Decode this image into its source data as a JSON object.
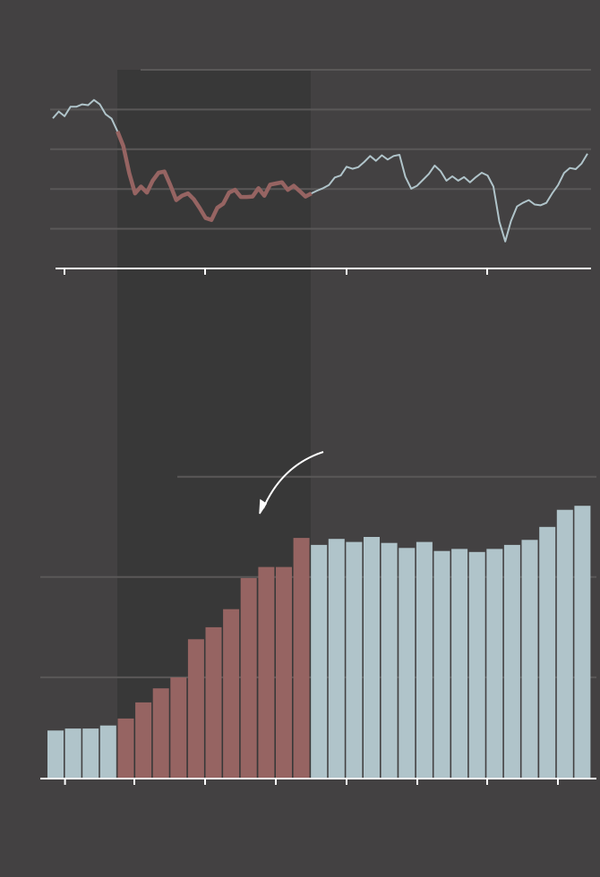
{
  "colors": {
    "background": "#434142",
    "highlight_band": "#383838",
    "normal": "#b0c4ca",
    "highlight": "#966462",
    "grid": "#5a5858",
    "axis": "#ffffff"
  },
  "chart_data": [
    {
      "type": "line",
      "title": "",
      "xlabel": "",
      "ylabel": "",
      "ylim": [
        0,
        50
      ],
      "yticks": [
        10,
        20,
        30,
        40,
        50
      ],
      "grid": true,
      "x_tick_count": 4,
      "highlight_range": [
        11,
        44
      ],
      "values": [
        37.8,
        39.5,
        38.3,
        40.7,
        40.7,
        41.3,
        41.1,
        42.4,
        41.3,
        38.8,
        37.7,
        34.5,
        30.8,
        24.0,
        18.9,
        20.6,
        19.1,
        22.1,
        24.1,
        24.4,
        21.0,
        17.2,
        18.3,
        18.9,
        17.4,
        15.2,
        12.7,
        12.2,
        15.3,
        16.3,
        19.1,
        19.8,
        18.0,
        18.0,
        18.1,
        20.2,
        18.3,
        21.1,
        21.4,
        21.7,
        19.8,
        20.8,
        19.5,
        18.1,
        18.9,
        19.6,
        20.2,
        21.0,
        22.9,
        23.4,
        25.6,
        25.1,
        25.5,
        26.8,
        28.3,
        27.1,
        28.5,
        27.4,
        28.3,
        28.6,
        23.1,
        20.1,
        20.8,
        22.3,
        23.8,
        25.9,
        24.5,
        22.1,
        23.2,
        22.1,
        23.0,
        21.7,
        23.0,
        24.1,
        23.4,
        20.6,
        11.8,
        6.8,
        12.0,
        15.6,
        16.5,
        17.2,
        16.1,
        15.9,
        16.5,
        18.9,
        21.0,
        24.0,
        25.3,
        25.0,
        26.4,
        28.9
      ]
    },
    {
      "type": "bar",
      "title": "",
      "xlabel": "",
      "ylabel": "",
      "ylim": [
        0,
        3
      ],
      "yticks": [
        1,
        2,
        3
      ],
      "grid": true,
      "x_tick_count": 8,
      "highlight_range": [
        4,
        14
      ],
      "values": [
        0.47,
        0.49,
        0.49,
        0.52,
        0.59,
        0.75,
        0.89,
        1.0,
        1.38,
        1.5,
        1.68,
        1.99,
        2.1,
        2.1,
        2.39,
        2.32,
        2.38,
        2.35,
        2.4,
        2.34,
        2.29,
        2.35,
        2.26,
        2.28,
        2.25,
        2.28,
        2.32,
        2.37,
        2.5,
        2.67,
        2.71
      ]
    }
  ]
}
